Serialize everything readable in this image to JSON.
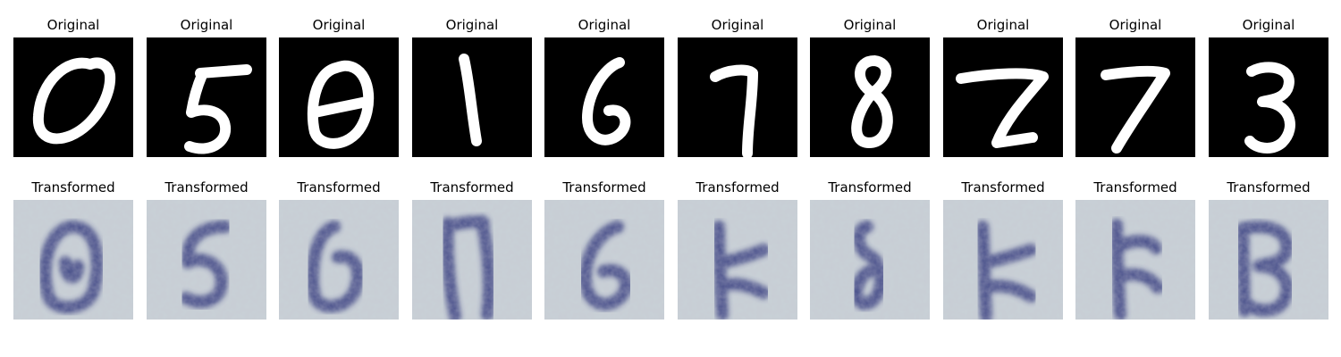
{
  "rows": [
    {
      "name": "original",
      "panels": [
        {
          "title": "Original",
          "digit": "0"
        },
        {
          "title": "Original",
          "digit": "5"
        },
        {
          "title": "Original",
          "digit": "0"
        },
        {
          "title": "Original",
          "digit": "1"
        },
        {
          "title": "Original",
          "digit": "6"
        },
        {
          "title": "Original",
          "digit": "7"
        },
        {
          "title": "Original",
          "digit": "8"
        },
        {
          "title": "Original",
          "digit": "7"
        },
        {
          "title": "Original",
          "digit": "7"
        },
        {
          "title": "Original",
          "digit": "3"
        }
      ]
    },
    {
      "name": "transformed",
      "panels": [
        {
          "title": "Transformed"
        },
        {
          "title": "Transformed"
        },
        {
          "title": "Transformed"
        },
        {
          "title": "Transformed"
        },
        {
          "title": "Transformed"
        },
        {
          "title": "Transformed"
        },
        {
          "title": "Transformed"
        },
        {
          "title": "Transformed"
        },
        {
          "title": "Transformed"
        },
        {
          "title": "Transformed"
        }
      ]
    }
  ],
  "colors": {
    "original_background": "#000000",
    "original_stroke": "#ffffff",
    "transformed_background": "#c9d1d6",
    "transformed_stroke": "#2a3278"
  }
}
